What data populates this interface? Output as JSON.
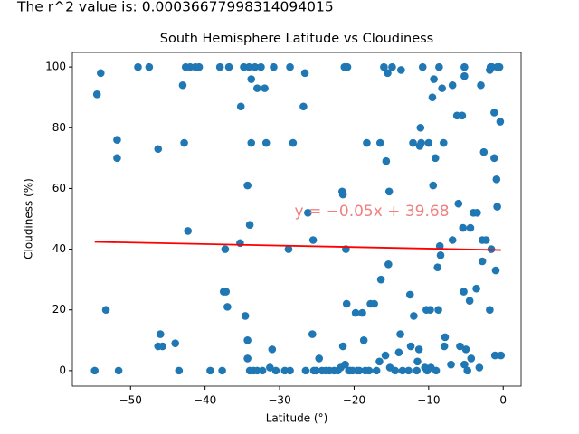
{
  "chart_data": {
    "type": "scatter",
    "figure_text": "The r^2 value is: 0.00036677998314094015",
    "title": "South Hemisphere Latitude vs Cloudiness",
    "x_label": "Latitude (°)",
    "y_label": "Cloudiness (%)",
    "color": "#1f77b4",
    "x": [
      -54.8,
      -54.5,
      -54,
      -53.3,
      -51.8,
      -51.8,
      -51.6,
      -49,
      -47.5,
      -46.3,
      -46.3,
      -46,
      -45.7,
      -44,
      -43.5,
      -43,
      -42.8,
      -42.6,
      -42.3,
      -42,
      -41.3,
      -40.8,
      -39.3,
      -38,
      -37.5,
      -37.7,
      -37.3,
      -37,
      -37.2,
      -36.8,
      -35.2,
      -35.3,
      -34.8,
      -34.6,
      -34.3,
      -34.3,
      -34.3,
      -34.1,
      -34,
      -34,
      -33.8,
      -33.8,
      -33.5,
      -33.3,
      -33,
      -33,
      -32.5,
      -32.3,
      -32,
      -31.8,
      -31.3,
      -31,
      -30.8,
      -30.5,
      -29.3,
      -28.8,
      -28.6,
      -28.6,
      -28.2,
      -26.8,
      -26.6,
      -26.5,
      -26.2,
      -25.6,
      -25.5,
      -25.4,
      -25.1,
      -24.7,
      -24.3,
      -23.8,
      -23.3,
      -22.7,
      -22.2,
      -21.8,
      -21.6,
      -21.5,
      -21.5,
      -21.3,
      -21.2,
      -21.1,
      -21,
      -20.9,
      -20.7,
      -20.5,
      -20.2,
      -19.8,
      -19.6,
      -19.3,
      -18.9,
      -18.7,
      -18.5,
      -18.3,
      -18,
      -17.8,
      -17.3,
      -17,
      -16.6,
      -16.5,
      -16.4,
      -16,
      -15.8,
      -15.7,
      -15.5,
      -15.4,
      -15.3,
      -15.2,
      -14.9,
      -14.5,
      -14,
      -13.8,
      -13.7,
      -13.5,
      -12.7,
      -12.5,
      -12.4,
      -12.1,
      -12,
      -11.6,
      -11.5,
      -11.3,
      -11.2,
      -11.1,
      -11,
      -10.8,
      -10.5,
      -10.3,
      -10.2,
      -10,
      -9.8,
      -9.7,
      -9.5,
      -9.4,
      -9.3,
      -9.1,
      -9,
      -8.8,
      -8.7,
      -8.6,
      -8.5,
      -8.4,
      -8.2,
      -8,
      -7.9,
      -7.8,
      -7,
      -6.8,
      -6.8,
      -6.2,
      -6,
      -5.8,
      -5.5,
      -5.4,
      -5.3,
      -5.2,
      -5.2,
      -5.2,
      -5,
      -4.8,
      -4.5,
      -4.4,
      -4.3,
      -4,
      -3.6,
      -3.5,
      -3.2,
      -3,
      -2.8,
      -2.8,
      -2.6,
      -2.3,
      -1.8,
      -1.8,
      -1.7,
      -1.6,
      -1.5,
      -1.2,
      -1.2,
      -1.1,
      -1,
      -0.9,
      -0.8,
      -0.5,
      -0.4,
      -0.3,
      -0.8
    ],
    "values": [
      0,
      91,
      98,
      20,
      76,
      70,
      0,
      100,
      100,
      73,
      8,
      12,
      8,
      9,
      0,
      94,
      75,
      100,
      46,
      100,
      100,
      100,
      0,
      100,
      26,
      0,
      40,
      21,
      26,
      100,
      87,
      42,
      100,
      18,
      61,
      4,
      10,
      100,
      48,
      0,
      75,
      96,
      0,
      100,
      93,
      0,
      100,
      0,
      93,
      75,
      1,
      7,
      100,
      0,
      0,
      40,
      100,
      0,
      75,
      87,
      98,
      0,
      52,
      12,
      43,
      0,
      0,
      4,
      0,
      0,
      0,
      0,
      0,
      1,
      59,
      8,
      58,
      100,
      2,
      40,
      22,
      100,
      0,
      0,
      0,
      19,
      0,
      0,
      19,
      10,
      0,
      75,
      0,
      22,
      22,
      0,
      3,
      75,
      30,
      100,
      5,
      69,
      98,
      35,
      59,
      1,
      100,
      0,
      6,
      12,
      99,
      0,
      0,
      25,
      8,
      75,
      18,
      0,
      3,
      7,
      74,
      80,
      75,
      100,
      1,
      20,
      0,
      75,
      20,
      1,
      90,
      61,
      96,
      70,
      0,
      34,
      20,
      100,
      41,
      38,
      93,
      75,
      8,
      11,
      2,
      94,
      43,
      84,
      55,
      8,
      84,
      47,
      26,
      97,
      2,
      100,
      7,
      0,
      23,
      47,
      4,
      52,
      27,
      52,
      1,
      94,
      43,
      36,
      72,
      43,
      20,
      99,
      100,
      40,
      100,
      85,
      70,
      5,
      33,
      63,
      54,
      100,
      82,
      5,
      100
    ],
    "regression_line": {
      "color": "#ff0000",
      "x": [
        -54.8,
        -0.3
      ],
      "y": [
        42.42,
        39.7
      ]
    },
    "equation": {
      "text": "y = −0.05x + 39.68",
      "color": "#f08080",
      "x": -28,
      "y": 50
    },
    "xlim": [
      -57.8,
      2.4
    ],
    "ylim": [
      -5.1,
      104.8
    ],
    "xticks": [
      {
        "value": -50,
        "label": "−50"
      },
      {
        "value": -40,
        "label": "−40"
      },
      {
        "value": -30,
        "label": "−30"
      },
      {
        "value": -20,
        "label": "−20"
      },
      {
        "value": -10,
        "label": "−10"
      },
      0
    ],
    "yticks": [
      0,
      20,
      40,
      60,
      80,
      100
    ]
  }
}
